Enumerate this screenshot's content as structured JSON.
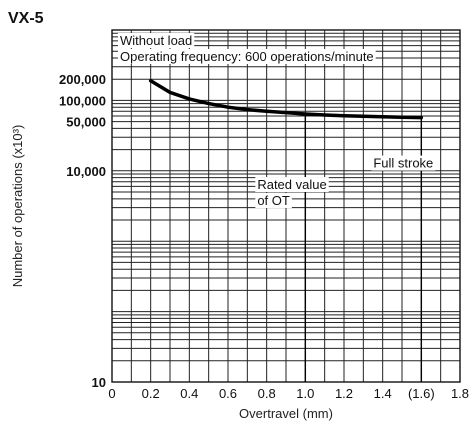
{
  "chart_data": {
    "type": "line",
    "title": "VX-5",
    "xlabel": "Overtravel (mm)",
    "ylabel": "Number of operations (x10³)",
    "x_scale": "linear",
    "y_scale": "log",
    "xlim": [
      0,
      1.8
    ],
    "ylim": [
      10,
      1000000
    ],
    "x_ticks": [
      {
        "value": 0,
        "label": "0"
      },
      {
        "value": 0.2,
        "label": "0.2"
      },
      {
        "value": 0.4,
        "label": "0.4"
      },
      {
        "value": 0.6,
        "label": "0.6"
      },
      {
        "value": 0.8,
        "label": "0.8"
      },
      {
        "value": 1.0,
        "label": "1.0"
      },
      {
        "value": 1.2,
        "label": "1.2"
      },
      {
        "value": 1.4,
        "label": "1.4"
      },
      {
        "value": 1.6,
        "label": "(1.6)"
      },
      {
        "value": 1.8,
        "label": "1.8"
      }
    ],
    "y_ticks": [
      {
        "value": 200000,
        "label": "200,000"
      },
      {
        "value": 100000,
        "label": "100,000"
      },
      {
        "value": 50000,
        "label": "50,000"
      },
      {
        "value": 10000,
        "label": "10,000"
      },
      {
        "value": 10,
        "label": "10"
      }
    ],
    "grid": true,
    "series": [
      {
        "x": [
          0.2,
          0.3,
          0.4,
          0.5,
          0.6,
          0.7,
          0.8,
          0.9,
          1.0,
          1.1,
          1.2,
          1.3,
          1.4,
          1.5,
          1.6
        ],
        "y": [
          190000,
          130000,
          105000,
          90000,
          80000,
          74000,
          70000,
          67000,
          64000,
          62000,
          60500,
          59500,
          58500,
          57500,
          57000
        ]
      }
    ],
    "legend_text": [
      "Without load",
      "Operating frequency: 600 operations/minute"
    ],
    "annotations": [
      {
        "text": "Full stroke",
        "x": 1.6
      },
      {
        "text": "Rated value",
        "x": 1.0
      },
      {
        "text": "of OT",
        "x": 1.0
      }
    ]
  }
}
